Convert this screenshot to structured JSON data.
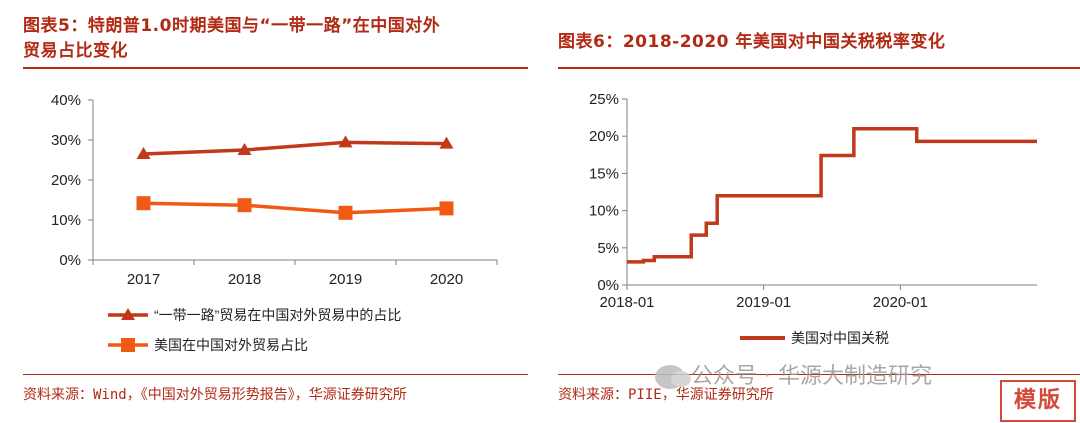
{
  "colors": {
    "accent": "#b22a14",
    "series_dark": "#c0391b",
    "series_orange": "#f05a14",
    "grid": "#d9d9d9"
  },
  "fig5": {
    "title_line1": "图表5：特朗普1.0时期美国与“一带一路”在中国对外",
    "title_line2": "贸易占比变化",
    "source": "资料来源：Wind，《中国对外贸易形势报告》，华源证券研究所"
  },
  "fig6": {
    "title": "图表6：2018-2020 年美国对中国关税税率变化",
    "source": "资料来源：PIIE，华源证券研究所"
  },
  "watermark": {
    "text": "公众号 · 华源大制造研究"
  },
  "stamp": {
    "text": "模版"
  },
  "chart_data": [
    {
      "id": "fig5",
      "type": "line",
      "categories": [
        "2017",
        "2018",
        "2019",
        "2020"
      ],
      "ylim": [
        0,
        40
      ],
      "yticks": [
        0,
        10,
        20,
        30,
        40
      ],
      "ytick_labels": [
        "0%",
        "10%",
        "20%",
        "30%",
        "40%"
      ],
      "series": [
        {
          "name": "“一带一路”贸易在中国对外贸易中的占比",
          "marker": "triangle",
          "color": "#c0391b",
          "values": [
            26.5,
            27.5,
            29.4,
            29.1
          ]
        },
        {
          "name": "美国在中国对外贸易占比",
          "marker": "square",
          "color": "#f05a14",
          "values": [
            14.2,
            13.7,
            11.8,
            12.9
          ]
        }
      ],
      "legend": "bottom"
    },
    {
      "id": "fig6",
      "type": "line",
      "step": true,
      "ylim": [
        0,
        25
      ],
      "yticks": [
        0,
        5,
        10,
        15,
        20,
        25
      ],
      "ytick_labels": [
        "0%",
        "5%",
        "10%",
        "15%",
        "20%",
        "25%"
      ],
      "xlim": [
        2018.0,
        2021.0
      ],
      "xticks": [
        2018.0,
        2019.0,
        2020.0
      ],
      "xtick_labels": [
        "2018-01",
        "2019-01",
        "2020-01"
      ],
      "series": [
        {
          "name": "美国对中国关税",
          "color": "#c0391b",
          "points": [
            [
              2018.0,
              3.1
            ],
            [
              2018.12,
              3.1
            ],
            [
              2018.12,
              3.3
            ],
            [
              2018.2,
              3.3
            ],
            [
              2018.2,
              3.8
            ],
            [
              2018.47,
              3.8
            ],
            [
              2018.47,
              6.7
            ],
            [
              2018.58,
              6.7
            ],
            [
              2018.58,
              8.3
            ],
            [
              2018.66,
              8.3
            ],
            [
              2018.66,
              12.0
            ],
            [
              2019.42,
              12.0
            ],
            [
              2019.42,
              17.4
            ],
            [
              2019.66,
              17.4
            ],
            [
              2019.66,
              21.0
            ],
            [
              2020.12,
              21.0
            ],
            [
              2020.12,
              19.3
            ],
            [
              2021.0,
              19.3
            ]
          ]
        }
      ],
      "legend": "bottom"
    }
  ]
}
